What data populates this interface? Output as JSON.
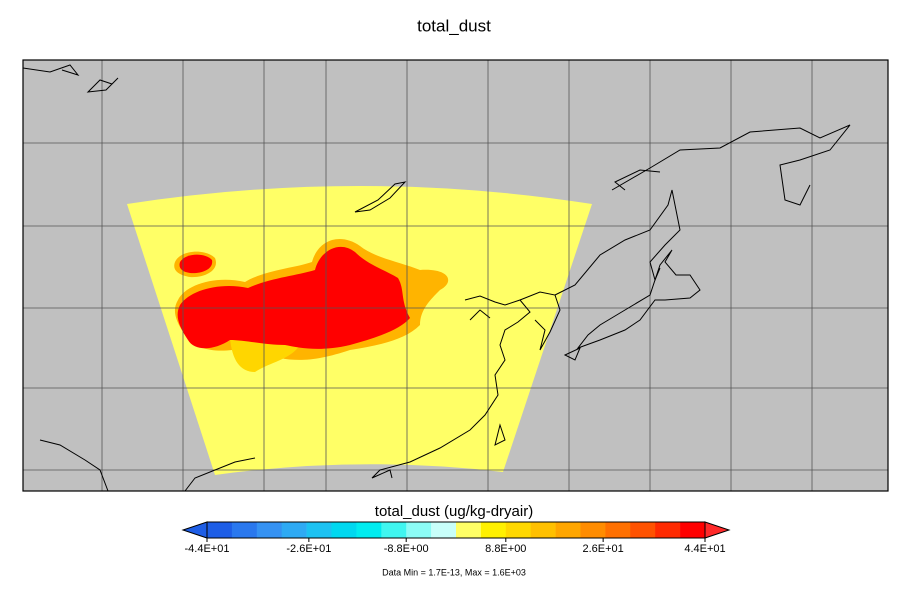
{
  "title": "total_dust",
  "colorbar": {
    "label": "total_dust (ug/kg-dryair)",
    "range": [
      -44,
      44
    ],
    "ticks": [
      {
        "value": -44,
        "label": "-4.4E+01"
      },
      {
        "value": -26,
        "label": "-2.6E+01"
      },
      {
        "value": -8.8,
        "label": "-8.8E+00"
      },
      {
        "value": 8.8,
        "label": "8.8E+00"
      },
      {
        "value": 26,
        "label": "2.6E+01"
      },
      {
        "value": 44,
        "label": "4.4E+01"
      }
    ],
    "colors": [
      "#1e5ee6",
      "#2a78ee",
      "#3592f3",
      "#2eaaf4",
      "#1cc2f2",
      "#00d8f0",
      "#00ecf0",
      "#40f6f0",
      "#8cfcf6",
      "#c8fffa",
      "#ffff66",
      "#fff000",
      "#ffd800",
      "#ffc000",
      "#ffa600",
      "#ff8c00",
      "#ff7000",
      "#ff5200",
      "#ff2a00",
      "#ff0000"
    ],
    "under_color": "#1e5ee6",
    "over_color": "#ff2a2a"
  },
  "footer": "Data Min = 1.7E-13, Max = 1.6E+03"
}
